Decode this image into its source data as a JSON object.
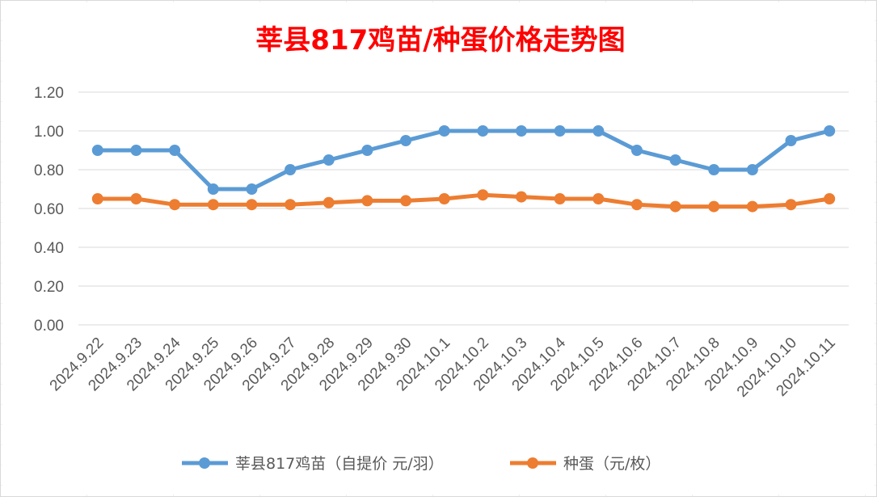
{
  "chart_data": {
    "type": "line",
    "title": "莘县817鸡苗/种蛋价格走势图",
    "categories": [
      "2024.9.22",
      "2024.9.23",
      "2024.9.24",
      "2024.9.25",
      "2024.9.26",
      "2024.9.27",
      "2024.9.28",
      "2024.9.29",
      "2024.9.30",
      "2024.10.1",
      "2024.10.2",
      "2024.10.3",
      "2024.10.4",
      "2024.10.5",
      "2024.10.6",
      "2024.10.7",
      "2024.10.8",
      "2024.10.9",
      "2024.10.10",
      "2024.10.11"
    ],
    "series": [
      {
        "name": "莘县817鸡苗（自提价 元/羽）",
        "color": "#5b9bd5",
        "values": [
          0.9,
          0.9,
          0.9,
          0.7,
          0.7,
          0.8,
          0.85,
          0.9,
          0.95,
          1.0,
          1.0,
          1.0,
          1.0,
          1.0,
          0.9,
          0.85,
          0.8,
          0.8,
          0.95,
          1.0
        ]
      },
      {
        "name": "种蛋（元/枚）",
        "color": "#ed7d31",
        "values": [
          0.65,
          0.65,
          0.62,
          0.62,
          0.62,
          0.62,
          0.63,
          0.64,
          0.64,
          0.65,
          0.67,
          0.66,
          0.65,
          0.65,
          0.62,
          0.61,
          0.61,
          0.61,
          0.62,
          0.65
        ]
      }
    ],
    "yticks": [
      "0.00",
      "0.20",
      "0.40",
      "0.60",
      "0.80",
      "1.00",
      "1.20"
    ],
    "ylim": [
      0,
      1.2
    ],
    "grid": true,
    "legend_position": "bottom",
    "title_color": "#ff0000"
  }
}
